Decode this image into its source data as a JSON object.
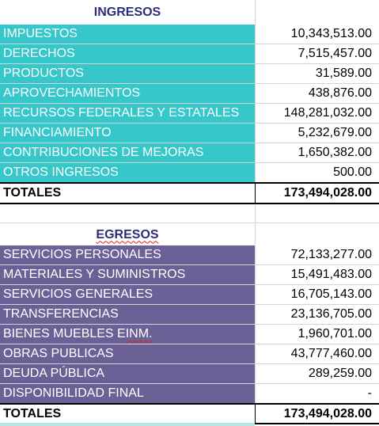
{
  "ingresos": {
    "title": "INGRESOS",
    "rows": [
      {
        "label": "IMPUESTOS",
        "value": "10,343,513.00"
      },
      {
        "label": "DERECHOS",
        "value": "7,515,457.00"
      },
      {
        "label": "PRODUCTOS",
        "value": "31,589.00"
      },
      {
        "label": "APROVECHAMIENTOS",
        "value": "438,876.00"
      },
      {
        "label": "RECURSOS FEDERALES Y ESTATALES",
        "value": "148,281,032.00"
      },
      {
        "label": "FINANCIAMIENTO",
        "value": "5,232,679.00"
      },
      {
        "label": "CONTRIBUCIONES DE MEJORAS",
        "value": "1,650,382.00"
      },
      {
        "label": "OTROS INGRESOS",
        "value": "500.00"
      }
    ],
    "total_label": "TOTALES",
    "total_value": "173,494,028.00"
  },
  "egresos": {
    "title": "EGRESOS",
    "rows": [
      {
        "label": "SERVICIOS PERSONALES",
        "value": "72,133,277.00"
      },
      {
        "label": "MATERIALES Y SUMINISTROS",
        "value": "15,491,483.00"
      },
      {
        "label": "SERVICIOS GENERALES",
        "value": "16,705,143.00"
      },
      {
        "label": "TRANSFERENCIAS",
        "value": "23,136,705.00"
      },
      {
        "label": "BIENES MUEBLES E INM.",
        "value": "1,960,701.00"
      },
      {
        "label": "OBRAS PUBLICAS",
        "value": "43,777,460.00"
      },
      {
        "label": "DEUDA PÚBLICA",
        "value": "289,259.00"
      },
      {
        "label": "DISPONIBILIDAD FINAL",
        "value": "-"
      }
    ],
    "total_label": "TOTALES",
    "total_value": "173,494,028.00"
  },
  "colors": {
    "ingresos_fill": "#35c7c9",
    "egresos_fill": "#6b6197",
    "header_text": "#2b2d78"
  }
}
